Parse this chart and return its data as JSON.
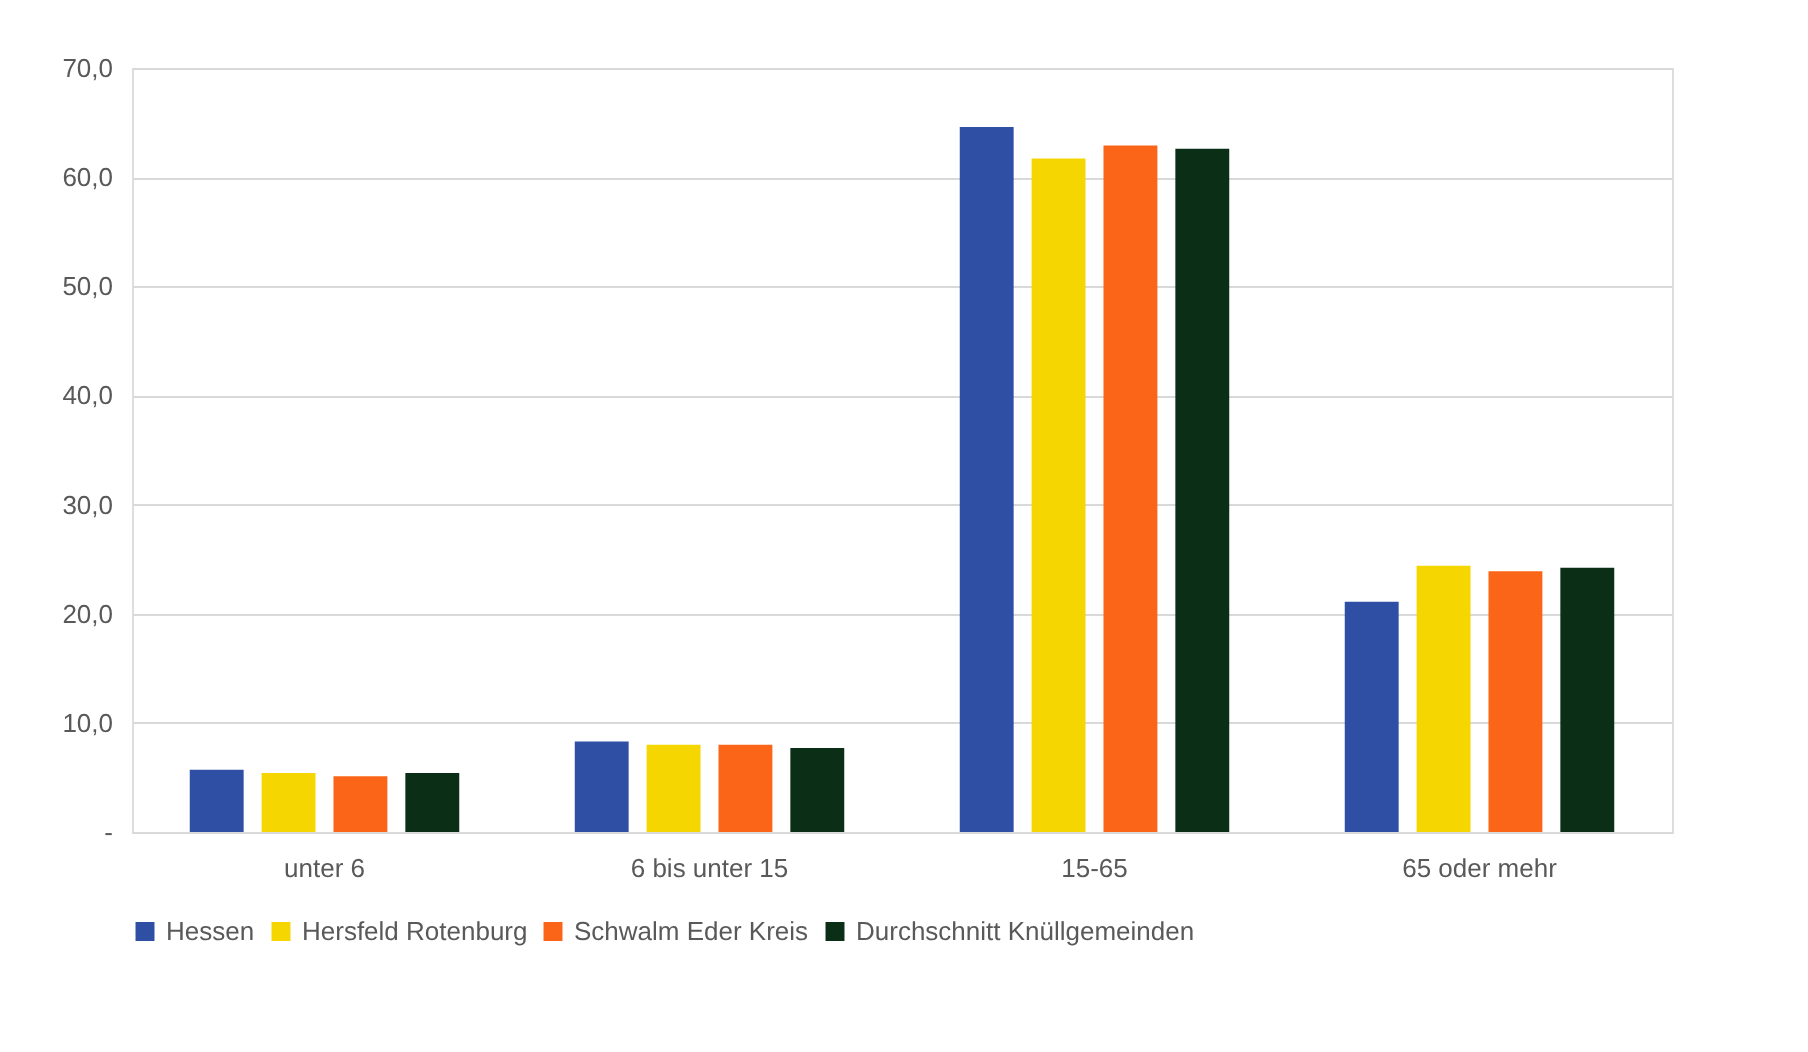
{
  "chart_data": {
    "type": "bar",
    "categories": [
      "unter 6",
      "6 bis unter 15",
      "15-65",
      "65 oder mehr"
    ],
    "series": [
      {
        "name": "Hessen",
        "color": "#2e4fa3",
        "values": [
          5.7,
          8.3,
          64.6,
          21.1
        ]
      },
      {
        "name": "Hersfeld Rotenburg",
        "color": "#f5d600",
        "values": [
          5.4,
          8.0,
          61.7,
          24.4
        ]
      },
      {
        "name": "Schwalm Eder Kreis",
        "color": "#fb6518",
        "values": [
          5.1,
          8.0,
          62.9,
          23.9
        ]
      },
      {
        "name": "Durchschnitt Knüllgemeinden",
        "color": "#0b2e17",
        "values": [
          5.4,
          7.7,
          62.6,
          24.2
        ]
      }
    ],
    "ylim": [
      0,
      70
    ],
    "yticks": [
      {
        "value": 0,
        "label": "-"
      },
      {
        "value": 10,
        "label": "10,0"
      },
      {
        "value": 20,
        "label": "20,0"
      },
      {
        "value": 30,
        "label": "30,0"
      },
      {
        "value": 40,
        "label": "40,0"
      },
      {
        "value": 50,
        "label": "50,0"
      },
      {
        "value": 60,
        "label": "60,0"
      },
      {
        "value": 70,
        "label": "70,0"
      }
    ],
    "grid": "y",
    "legend": "bottom"
  }
}
